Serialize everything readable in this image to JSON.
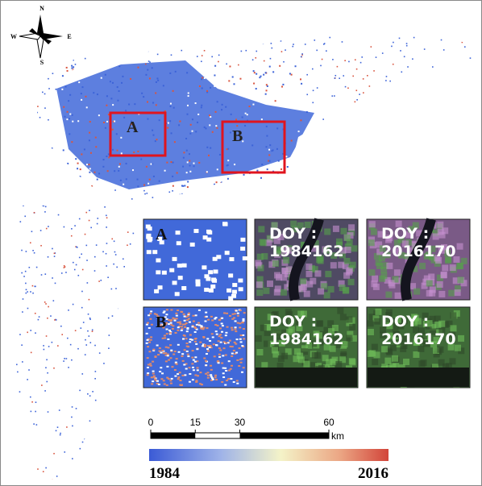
{
  "compass": {
    "north": "N",
    "south": "S",
    "west": "W",
    "east": "E"
  },
  "map_boxes": [
    {
      "label": "A"
    },
    {
      "label": "B"
    }
  ],
  "panels": [
    {
      "label": "A",
      "images": [
        {
          "line1": "DOY :",
          "line2": "1984162"
        },
        {
          "line1": "DOY :",
          "line2": "2016170"
        }
      ]
    },
    {
      "label": "B",
      "images": [
        {
          "line1": "DOY :",
          "line2": "1984162"
        },
        {
          "line1": "DOY :",
          "line2": "2016170"
        }
      ]
    }
  ],
  "scale_bar": {
    "ticks": [
      0,
      15,
      30,
      60
    ],
    "max": 60,
    "unit": "km"
  },
  "legend": {
    "start_label": "1984",
    "end_label": "2016"
  }
}
